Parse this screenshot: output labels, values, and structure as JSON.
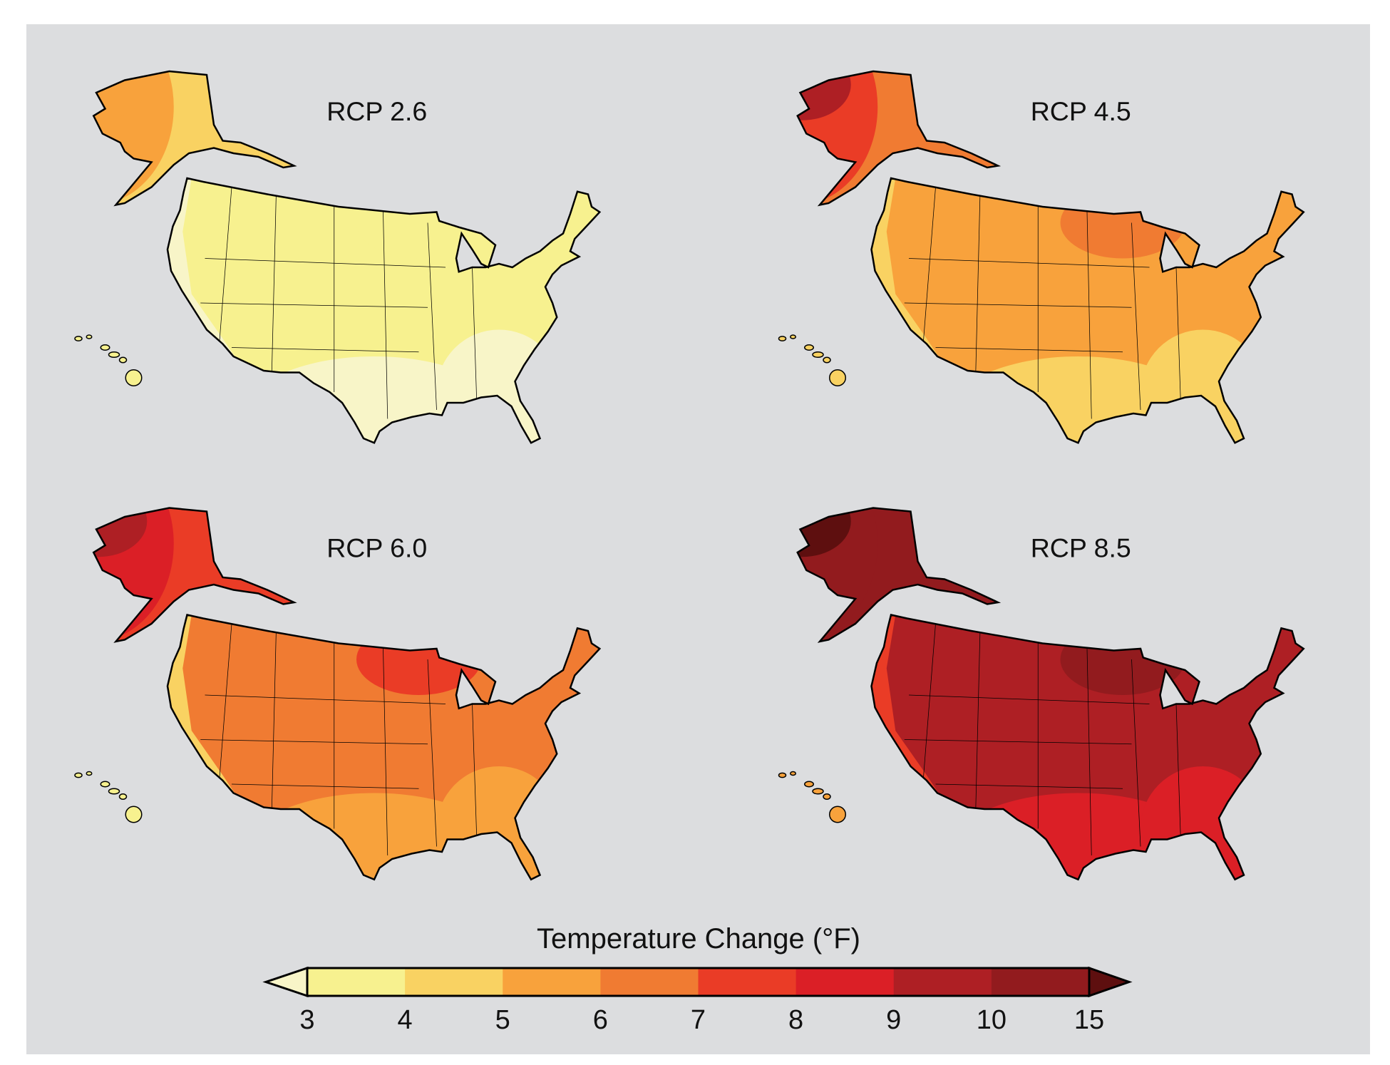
{
  "figure": {
    "background": "#dcdddf",
    "panels": [
      {
        "label": "RCP 2.6",
        "conus_base": "#f7f18f",
        "conus_south": "#f8f5c8",
        "conus_north": "#f7f18f",
        "conus_coast": "#f8f5c8",
        "alaska_base": "#f9d262",
        "alaska_west": "#f8a23c",
        "alaska_far_west": "#f8a23c",
        "hawaii": "#f7f18f"
      },
      {
        "label": "RCP 4.5",
        "conus_base": "#f8a23c",
        "conus_south": "#f9d262",
        "conus_north": "#f07b32",
        "conus_coast": "#f9d262",
        "alaska_base": "#f07b32",
        "alaska_west": "#ea3c26",
        "alaska_far_west": "#ae1f24",
        "hawaii": "#f9d262"
      },
      {
        "label": "RCP 6.0",
        "conus_base": "#f07b32",
        "conus_south": "#f8a23c",
        "conus_north": "#ea3c26",
        "conus_coast": "#f9d262",
        "alaska_base": "#ea3c26",
        "alaska_west": "#db1f26",
        "alaska_far_west": "#ae1f24",
        "hawaii": "#f7f18f"
      },
      {
        "label": "RCP 8.5",
        "conus_base": "#ae1f24",
        "conus_south": "#db1f26",
        "conus_north": "#921b1e",
        "conus_coast": "#ea3c26",
        "alaska_base": "#921b1e",
        "alaska_west": "#921b1e",
        "alaska_far_west": "#5e0f0f",
        "hawaii": "#f8a23c"
      }
    ]
  },
  "legend": {
    "title": "Temperature Change (°F)",
    "below_color": "#f8f5c8",
    "above_color": "#5e0f0f",
    "ticks": [
      "3",
      "4",
      "5",
      "6",
      "7",
      "8",
      "9",
      "10",
      "15"
    ],
    "colors": [
      "#f7f18f",
      "#f9d262",
      "#f8a23c",
      "#f07b32",
      "#ea3c26",
      "#db1f26",
      "#ae1f24",
      "#921b1e"
    ]
  }
}
